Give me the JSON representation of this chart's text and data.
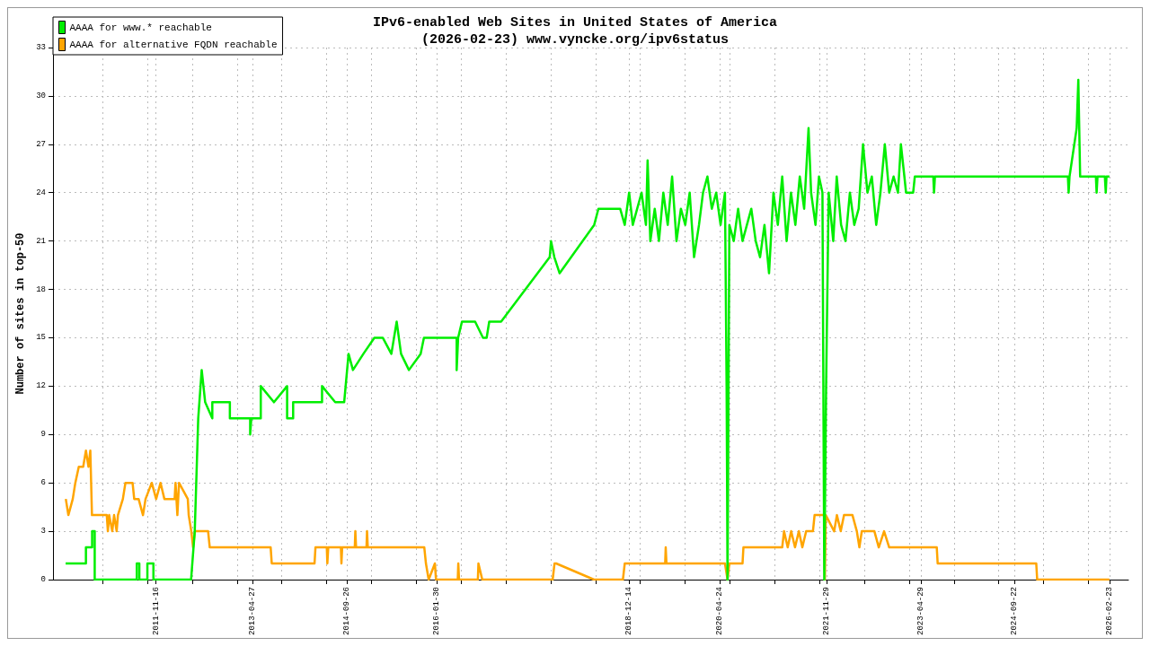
{
  "chart_data": {
    "type": "line",
    "title": "IPv6-enabled Web Sites in United States of America",
    "subtitle": "(2026-02-23) www.vyncke.org/ipv6status",
    "ylabel": "Number of sites in top-50",
    "xlim": [
      "2010-05-02",
      "2026-06-07"
    ],
    "xticks": [
      {
        "value": "2011-01-28",
        "label": null
      },
      {
        "value": "2011-09-30",
        "label": null
      },
      "2011-11-16",
      {
        "value": "2012-06-01",
        "label": null
      },
      {
        "value": "2013-02-01",
        "label": null
      },
      "2013-04-27",
      {
        "value": "2013-10-04",
        "label": null
      },
      {
        "value": "2014-06-06",
        "label": null
      },
      "2014-09-26",
      {
        "value": "2015-02-06",
        "label": null
      },
      {
        "value": "2015-10-09",
        "label": null
      },
      "2016-01-30",
      {
        "value": "2016-06-10",
        "label": null
      },
      {
        "value": "2017-02-10",
        "label": null
      },
      {
        "value": "2017-10-13",
        "label": null
      },
      {
        "value": "2018-06-15",
        "label": null
      },
      "2018-12-14",
      {
        "value": "2019-02-15",
        "label": null
      },
      {
        "value": "2019-10-18",
        "label": null
      },
      "2020-04-24",
      {
        "value": "2020-06-19",
        "label": null
      },
      {
        "value": "2021-02-19",
        "label": null
      },
      {
        "value": "2021-10-22",
        "label": null
      },
      "2021-11-29",
      {
        "value": "2022-06-24",
        "label": null
      },
      {
        "value": "2023-02-24",
        "label": null
      },
      "2023-04-29",
      {
        "value": "2023-10-27",
        "label": null
      },
      {
        "value": "2024-06-28",
        "label": null
      },
      "2024-09-22",
      {
        "value": "2025-02-28",
        "label": null
      },
      {
        "value": "2025-10-31",
        "label": null
      },
      "2026-02-23"
    ],
    "ylim": [
      0,
      33
    ],
    "yticks": [
      0,
      3,
      6,
      9,
      12,
      15,
      18,
      21,
      24,
      27,
      30,
      33
    ],
    "grid": true,
    "legend": "top left",
    "marker": "none",
    "series": [
      {
        "name": "AAAA for www.* reachable",
        "color": "#00ee00",
        "x": [
          "2010-07-10",
          "2010-10-29",
          "2010-10-29",
          "2010-12-02",
          "2010-12-02",
          "2010-12-16",
          "2010-12-16",
          "2011-08-03",
          "2011-08-03",
          "2011-08-17",
          "2011-08-17",
          "2011-09-30",
          "2011-09-30",
          "2011-11-02",
          "2011-11-02",
          "2012-05-26",
          "2012-06-15",
          "2012-07-04",
          "2012-07-23",
          "2012-08-11",
          "2012-09-19",
          "2012-09-19",
          "2012-12-24",
          "2012-12-24",
          "2013-04-14",
          "2013-04-14",
          "2013-04-20",
          "2013-06-11",
          "2013-06-11",
          "2013-08-22",
          "2013-11-02",
          "2013-11-02",
          "2013-12-05",
          "2013-12-05",
          "2014-05-12",
          "2014-05-12",
          "2014-07-23",
          "2014-09-10",
          "2014-10-04",
          "2014-10-28",
          "2014-12-24",
          "2015-02-22",
          "2015-04-09",
          "2015-05-26",
          "2015-06-24",
          "2015-07-18",
          "2015-08-30",
          "2015-11-02",
          "2015-11-20",
          "2016-02-17",
          "2016-05-17",
          "2016-05-17",
          "2016-05-25",
          "2016-06-15",
          "2016-08-26",
          "2016-10-08",
          "2016-10-28",
          "2016-11-11",
          "2017-01-15",
          "2017-10-08",
          "2017-10-15",
          "2017-11-02",
          "2017-12-01",
          "2018-06-08",
          "2018-07-01",
          "2018-10-28",
          "2018-11-22",
          "2018-12-16",
          "2019-01-05",
          "2019-01-29",
          "2019-02-22",
          "2019-03-18",
          "2019-03-27",
          "2019-04-11",
          "2019-05-05",
          "2019-05-28",
          "2019-06-21",
          "2019-07-15",
          "2019-08-08",
          "2019-09-01",
          "2019-09-25",
          "2019-10-19",
          "2019-11-12",
          "2019-12-06",
          "2020-01-02",
          "2020-01-24",
          "2020-02-17",
          "2020-03-12",
          "2020-04-05",
          "2020-04-29",
          "2020-05-23",
          "2020-06-01",
          "2020-06-06",
          "2020-06-16",
          "2020-07-10",
          "2020-08-03",
          "2020-08-27",
          "2020-09-20",
          "2020-10-14",
          "2020-11-07",
          "2020-12-01",
          "2020-12-25",
          "2021-01-19",
          "2021-02-12",
          "2021-03-08",
          "2021-04-01",
          "2021-04-25",
          "2021-05-19",
          "2021-06-12",
          "2021-07-06",
          "2021-07-30",
          "2021-08-23",
          "2021-09-06",
          "2021-09-30",
          "2021-10-19",
          "2021-11-07",
          "2021-11-17",
          "2021-11-27",
          "2021-12-11",
          "2022-01-05",
          "2022-01-24",
          "2022-02-17",
          "2022-03-13",
          "2022-04-06",
          "2022-04-30",
          "2022-05-24",
          "2022-06-17",
          "2022-07-11",
          "2022-08-04",
          "2022-08-28",
          "2022-09-20",
          "2022-10-14",
          "2022-11-07",
          "2022-12-01",
          "2022-12-25",
          "2023-01-10",
          "2023-01-29",
          "2023-02-07",
          "2023-03-18",
          "2023-03-27",
          "2023-07-06",
          "2023-07-10",
          "2023-07-15",
          "2025-07-11",
          "2025-07-15",
          "2025-07-20",
          "2025-08-28",
          "2025-09-06",
          "2025-09-16",
          "2025-12-11",
          "2025-12-15",
          "2025-12-20",
          "2026-01-29",
          "2026-02-03",
          "2026-02-07",
          "2026-02-23"
        ],
        "values": [
          1,
          1,
          2,
          2,
          3,
          3,
          0,
          0,
          1,
          1,
          0,
          0,
          1,
          1,
          0,
          0,
          3,
          10,
          13,
          11,
          10,
          11,
          11,
          10,
          10,
          9,
          10,
          10,
          12,
          11,
          12,
          10,
          10,
          11,
          11,
          12,
          11,
          11,
          14,
          13,
          14,
          15,
          15,
          14,
          16,
          14,
          13,
          14,
          15,
          15,
          15,
          13,
          15,
          16,
          16,
          15,
          15,
          16,
          16,
          20,
          21,
          20,
          19,
          22,
          23,
          23,
          22,
          24,
          22,
          23,
          24,
          22,
          26,
          21,
          23,
          21,
          24,
          22,
          25,
          21,
          23,
          22,
          24,
          20,
          22,
          24,
          25,
          23,
          24,
          22,
          24,
          12,
          0,
          22,
          21,
          23,
          21,
          22,
          23,
          21,
          20,
          22,
          19,
          24,
          22,
          25,
          21,
          24,
          22,
          25,
          23,
          28,
          24,
          22,
          25,
          24,
          0,
          12,
          24,
          21,
          25,
          22,
          21,
          24,
          22,
          23,
          27,
          24,
          25,
          22,
          24,
          27,
          24,
          25,
          24,
          27,
          25,
          24,
          24,
          25,
          25,
          24,
          25,
          25,
          24,
          25,
          28,
          31,
          25,
          25,
          24,
          25,
          25,
          24,
          25,
          25
        ]
      },
      {
        "name": "AAAA for alternative FQDN reachable",
        "color": "#ffa500",
        "x": [
          "2010-07-11",
          "2010-07-25",
          "2010-08-18",
          "2010-09-01",
          "2010-09-20",
          "2010-10-14",
          "2010-10-29",
          "2010-11-12",
          "2010-11-22",
          "2010-12-01",
          "2011-02-20",
          "2011-02-26",
          "2011-03-05",
          "2011-03-22",
          "2011-04-01",
          "2011-04-15",
          "2011-04-22",
          "2011-05-19",
          "2011-06-02",
          "2011-07-11",
          "2011-07-20",
          "2011-08-13",
          "2011-09-06",
          "2011-09-20",
          "2011-10-24",
          "2011-11-17",
          "2011-12-11",
          "2012-01-01",
          "2012-02-26",
          "2012-03-02",
          "2012-03-12",
          "2012-03-21",
          "2012-05-08",
          "2012-05-13",
          "2012-05-27",
          "2012-06-06",
          "2012-06-16",
          "2012-08-27",
          "2012-09-05",
          "2013-08-04",
          "2013-08-10",
          "2014-04-01",
          "2014-04-06",
          "2014-06-07",
          "2014-06-10",
          "2014-06-15",
          "2014-08-23",
          "2014-08-26",
          "2014-08-30",
          "2014-11-07",
          "2014-11-10",
          "2014-11-14",
          "2015-01-10",
          "2015-01-13",
          "2015-01-17",
          "2015-11-22",
          "2015-12-01",
          "2015-12-16",
          "2016-01-19",
          "2016-01-25",
          "2016-05-23",
          "2016-05-26",
          "2016-05-30",
          "2016-09-10",
          "2016-09-13",
          "2016-10-04",
          "2017-10-24",
          "2017-11-03",
          "2017-11-12",
          "2018-06-07",
          "2018-11-12",
          "2018-11-22",
          "2019-07-01",
          "2019-07-04",
          "2019-07-08",
          "2020-05-23",
          "2020-06-06",
          "2020-06-16",
          "2020-08-27",
          "2020-09-01",
          "2021-04-01",
          "2021-04-11",
          "2021-05-01",
          "2021-05-20",
          "2021-06-10",
          "2021-07-01",
          "2021-07-20",
          "2021-08-10",
          "2021-09-16",
          "2021-09-25",
          "2021-11-17",
          "2021-11-20",
          "2021-11-25",
          "2022-01-10",
          "2022-01-25",
          "2022-02-15",
          "2022-03-05",
          "2022-04-20",
          "2022-05-14",
          "2022-05-28",
          "2022-06-10",
          "2022-08-18",
          "2022-09-11",
          "2022-10-10",
          "2022-11-07",
          "2023-07-25",
          "2023-07-30",
          "2025-01-19",
          "2025-01-24",
          "2026-02-23"
        ],
        "values": [
          5,
          4,
          5,
          6,
          7,
          7,
          8,
          7,
          8,
          4,
          4,
          3,
          4,
          3,
          4,
          3,
          4,
          5,
          6,
          6,
          5,
          5,
          4,
          5,
          6,
          5,
          6,
          5,
          5,
          6,
          4,
          6,
          5,
          4,
          3,
          2,
          3,
          3,
          2,
          2,
          1,
          1,
          2,
          2,
          1,
          2,
          2,
          1,
          2,
          2,
          3,
          2,
          2,
          3,
          2,
          2,
          1,
          0,
          1,
          0,
          0,
          1,
          0,
          0,
          1,
          0,
          0,
          1,
          1,
          0,
          0,
          1,
          1,
          2,
          1,
          1,
          0,
          1,
          1,
          2,
          2,
          3,
          2,
          3,
          2,
          3,
          2,
          3,
          3,
          4,
          4,
          0,
          4,
          3,
          4,
          3,
          4,
          4,
          3,
          2,
          3,
          3,
          2,
          3,
          2,
          2,
          1,
          1,
          0,
          0
        ]
      }
    ]
  }
}
